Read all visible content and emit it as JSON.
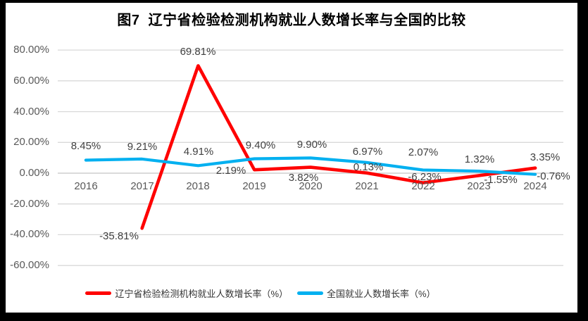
{
  "page": {
    "frame_color": "#000000",
    "surface_color": "#ffffff"
  },
  "chart_data": {
    "type": "line",
    "title": "图7  辽宁省检验检测机构就业人数增长率与全国的比较",
    "categories": [
      "2016",
      "2017",
      "2018",
      "2019",
      "2020",
      "2021",
      "2022",
      "2023",
      "2024"
    ],
    "series": [
      {
        "name": "辽宁省检验检测机构就业人数增长率（%）",
        "color": "#ff0000",
        "values": [
          null,
          -35.81,
          69.81,
          2.19,
          3.82,
          0.13,
          -6.23,
          -1.55,
          3.35
        ],
        "labels": [
          "",
          "-35.81%",
          "69.81%",
          "2.19%",
          "3.82%",
          "0.13%",
          "-6.23%",
          "-1.55%",
          "3.35%"
        ],
        "label_offsets": [
          [
            0,
            0
          ],
          [
            -33,
            12
          ],
          [
            0,
            -19
          ],
          [
            -33,
            2
          ],
          [
            -10,
            15
          ],
          [
            2,
            -8
          ],
          [
            2,
            -8
          ],
          [
            31,
            7
          ],
          [
            14,
            -15
          ]
        ]
      },
      {
        "name": "全国就业人数增长率（%）",
        "color": "#00b0f0",
        "values": [
          8.45,
          9.21,
          4.91,
          9.4,
          9.9,
          6.97,
          2.07,
          1.32,
          -0.76
        ],
        "labels": [
          "8.45%",
          "9.21%",
          "4.91%",
          "9.40%",
          "9.90%",
          "6.97%",
          "2.07%",
          "1.32%",
          "-0.76%"
        ],
        "label_offsets": [
          [
            0,
            -20
          ],
          [
            0,
            -17
          ],
          [
            1,
            -19
          ],
          [
            9,
            -18
          ],
          [
            2,
            -18
          ],
          [
            1,
            -15
          ],
          [
            0,
            -24
          ],
          [
            1,
            -16
          ],
          [
            26,
            3
          ]
        ]
      }
    ],
    "y_axis": {
      "min": -60,
      "max": 80,
      "step": 20,
      "tick_labels": [
        "80.00%",
        "60.00%",
        "40.00%",
        "20.00%",
        "0.00%",
        "-20.00%",
        "-40.00%",
        "-60.00%"
      ]
    },
    "grid": true,
    "legend_position": "bottom",
    "colors": {
      "gridline": "#d9d9d9",
      "zero_line": "#c3c3c3",
      "axis_text": "#595959",
      "label_text": "#404040",
      "title_text": "#000000"
    }
  }
}
